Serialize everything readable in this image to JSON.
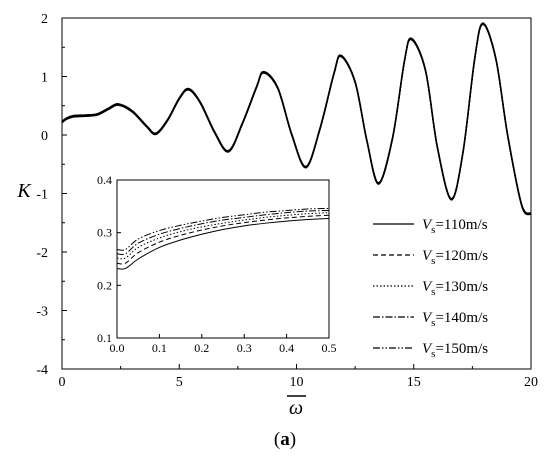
{
  "chart_data": {
    "type": "line",
    "panel_label": {
      "open": "(",
      "letter": "a",
      "close": ")"
    },
    "main": {
      "xlabel": "ω",
      "ylabel": "K",
      "xlim": [
        0,
        20
      ],
      "ylim": [
        -4,
        2
      ],
      "xticks": [
        0,
        5,
        10,
        15,
        20
      ],
      "yticks": [
        -4,
        -3,
        -2,
        -1,
        0,
        1,
        2
      ],
      "curve_points": [
        [
          0,
          0.22
        ],
        [
          0.2,
          0.28
        ],
        [
          0.5,
          0.32
        ],
        [
          1.0,
          0.33
        ],
        [
          1.5,
          0.35
        ],
        [
          2.0,
          0.45
        ],
        [
          2.4,
          0.52
        ],
        [
          3.0,
          0.4
        ],
        [
          3.6,
          0.15
        ],
        [
          4.0,
          0.02
        ],
        [
          4.5,
          0.25
        ],
        [
          5.0,
          0.62
        ],
        [
          5.4,
          0.78
        ],
        [
          5.9,
          0.55
        ],
        [
          6.5,
          0.05
        ],
        [
          7.1,
          -0.28
        ],
        [
          7.7,
          0.2
        ],
        [
          8.3,
          0.82
        ],
        [
          8.6,
          1.07
        ],
        [
          9.2,
          0.8
        ],
        [
          9.8,
          0.0
        ],
        [
          10.4,
          -0.55
        ],
        [
          11.0,
          0.1
        ],
        [
          11.6,
          1.05
        ],
        [
          11.9,
          1.35
        ],
        [
          12.5,
          0.9
        ],
        [
          13.0,
          -0.1
        ],
        [
          13.5,
          -0.83
        ],
        [
          14.1,
          -0.05
        ],
        [
          14.6,
          1.25
        ],
        [
          14.9,
          1.64
        ],
        [
          15.5,
          1.1
        ],
        [
          16.0,
          -0.2
        ],
        [
          16.6,
          -1.1
        ],
        [
          17.1,
          -0.3
        ],
        [
          17.6,
          1.3
        ],
        [
          17.95,
          1.9
        ],
        [
          18.5,
          1.3
        ],
        [
          19.0,
          0.0
        ],
        [
          19.6,
          -1.2
        ],
        [
          20.0,
          -1.35
        ]
      ]
    },
    "inset": {
      "xlim": [
        0,
        0.5
      ],
      "ylim": [
        0.1,
        0.4
      ],
      "xticks": [
        0.0,
        0.1,
        0.2,
        0.3,
        0.4,
        0.5
      ],
      "yticks": [
        0.1,
        0.2,
        0.3,
        0.4
      ],
      "x": [
        0.0,
        0.02,
        0.05,
        0.1,
        0.15,
        0.2,
        0.25,
        0.3,
        0.35,
        0.4,
        0.45,
        0.5
      ]
    },
    "series": [
      {
        "var": "V",
        "sub": "s",
        "rest": "=110m/s",
        "dash": "",
        "inset_values": [
          0.232,
          0.232,
          0.25,
          0.272,
          0.286,
          0.297,
          0.306,
          0.313,
          0.318,
          0.322,
          0.325,
          0.327
        ]
      },
      {
        "var": "V",
        "sub": "s",
        "rest": "=120m/s",
        "dash": "5,3",
        "inset_values": [
          0.242,
          0.242,
          0.262,
          0.282,
          0.295,
          0.305,
          0.313,
          0.319,
          0.324,
          0.328,
          0.331,
          0.333
        ]
      },
      {
        "var": "V",
        "sub": "s",
        "rest": "=130m/s",
        "dash": "1.5,2",
        "inset_values": [
          0.252,
          0.252,
          0.272,
          0.29,
          0.302,
          0.311,
          0.318,
          0.324,
          0.329,
          0.333,
          0.336,
          0.338
        ]
      },
      {
        "var": "V",
        "sub": "s",
        "rest": "=140m/s",
        "dash": "7,2,1.5,2",
        "inset_values": [
          0.26,
          0.26,
          0.28,
          0.297,
          0.308,
          0.317,
          0.324,
          0.329,
          0.334,
          0.338,
          0.341,
          0.342
        ]
      },
      {
        "var": "V",
        "sub": "s",
        "rest": "=150m/s",
        "dash": "7,2,1.5,2,1.5,2",
        "inset_values": [
          0.268,
          0.268,
          0.288,
          0.304,
          0.314,
          0.322,
          0.329,
          0.334,
          0.339,
          0.342,
          0.345,
          0.346
        ]
      }
    ]
  }
}
